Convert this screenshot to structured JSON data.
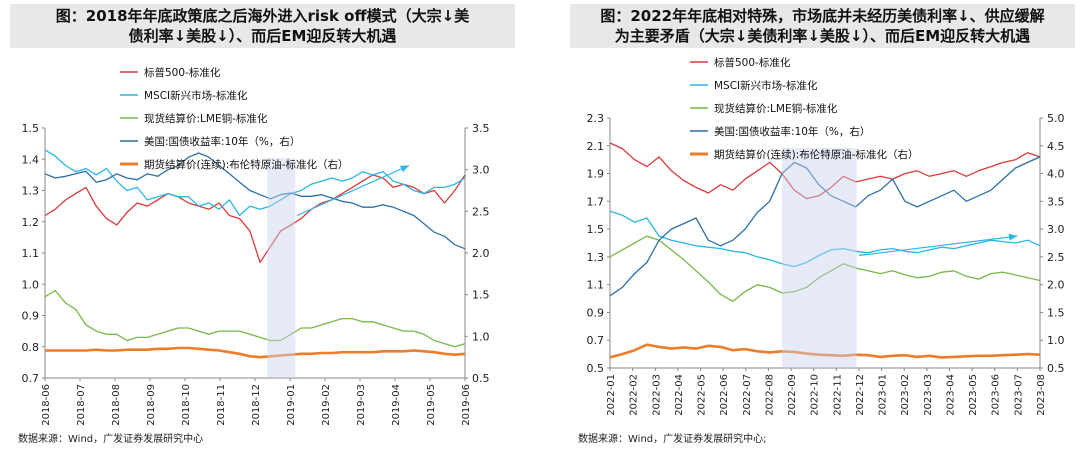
{
  "colors": {
    "sp500": "#d93a3a",
    "msci": "#29b6e8",
    "lme": "#7ab648",
    "ust10y": "#2c6fa8",
    "brent": "#ee7d2a",
    "highlight": "#c9d3ee",
    "arrow": "#29b6e8"
  },
  "chart_data": [
    {
      "type": "line",
      "title": "图：2018年年底政策底之后海外进入risk off模式（大宗↓美债利率↓美股↓）、而后EM迎反转大机遇",
      "title_lines": [
        "图：2018年年底政策底之后海外进入risk off模式（大宗↓美",
        "债利率↓美股↓）、而后EM迎反转大机遇"
      ],
      "x_labels": [
        "2018-06",
        "2018-07",
        "2018-08",
        "2018-09",
        "2018-10",
        "2018-11",
        "2018-12",
        "2019-01",
        "2019-02",
        "2019-03",
        "2019-04",
        "2019-05",
        "2019-06"
      ],
      "y_left": {
        "ylim": [
          0.7,
          1.5
        ],
        "ticks": [
          "0.7",
          "0.8",
          "0.9",
          "1.0",
          "1.1",
          "1.2",
          "1.3",
          "1.4",
          "1.5"
        ]
      },
      "y_right": {
        "ylim": [
          0.5,
          3.5
        ],
        "ticks": [
          "0.5",
          "1.0",
          "1.5",
          "2.0",
          "2.5",
          "3.0",
          "3.5"
        ]
      },
      "highlight": [
        6.35,
        7.15
      ],
      "arrow": {
        "from": [
          7.2,
          1.22
        ],
        "to": [
          10.4,
          1.38
        ]
      },
      "legend": [
        "标普500-标准化",
        "MSCI新兴市场-标准化",
        "现货结算价:LME铜-标准化",
        "美国:国债收益率:10年（%，右）",
        "期货结算价(连续):布伦特原油-标准化（右）"
      ],
      "series": [
        {
          "name": "标普500-标准化",
          "axis": "left",
          "color_key": "sp500",
          "values": [
            1.22,
            1.24,
            1.27,
            1.29,
            1.31,
            1.25,
            1.21,
            1.19,
            1.23,
            1.26,
            1.25,
            1.27,
            1.29,
            1.28,
            1.26,
            1.25,
            1.24,
            1.26,
            1.22,
            1.21,
            1.17,
            1.07,
            1.12,
            1.17,
            1.19,
            1.21,
            1.24,
            1.26,
            1.27,
            1.29,
            1.31,
            1.33,
            1.35,
            1.34,
            1.31,
            1.32,
            1.31,
            1.29,
            1.3,
            1.26,
            1.3,
            1.35
          ]
        },
        {
          "name": "MSCI新兴市场-标准化",
          "axis": "left",
          "color_key": "msci",
          "values": [
            1.43,
            1.41,
            1.38,
            1.36,
            1.37,
            1.35,
            1.37,
            1.33,
            1.3,
            1.31,
            1.27,
            1.28,
            1.29,
            1.28,
            1.28,
            1.25,
            1.26,
            1.24,
            1.27,
            1.22,
            1.25,
            1.24,
            1.25,
            1.27,
            1.29,
            1.3,
            1.32,
            1.33,
            1.34,
            1.33,
            1.34,
            1.36,
            1.35,
            1.36,
            1.33,
            1.32,
            1.3,
            1.29,
            1.31,
            1.31,
            1.32,
            1.34
          ]
        },
        {
          "name": "现货结算价:LME铜-标准化",
          "axis": "left",
          "color_key": "lme",
          "values": [
            0.96,
            0.98,
            0.94,
            0.92,
            0.87,
            0.85,
            0.84,
            0.84,
            0.82,
            0.83,
            0.83,
            0.84,
            0.85,
            0.86,
            0.86,
            0.85,
            0.84,
            0.85,
            0.85,
            0.85,
            0.84,
            0.83,
            0.82,
            0.82,
            0.84,
            0.86,
            0.86,
            0.87,
            0.88,
            0.89,
            0.89,
            0.88,
            0.88,
            0.87,
            0.86,
            0.85,
            0.85,
            0.84,
            0.82,
            0.81,
            0.8,
            0.81
          ]
        },
        {
          "name": "美国:国债收益率:10年（%，右）",
          "axis": "right",
          "color_key": "ust10y",
          "values": [
            2.95,
            2.9,
            2.92,
            2.95,
            2.98,
            2.85,
            2.88,
            2.95,
            2.9,
            2.88,
            2.95,
            2.92,
            3.0,
            3.05,
            3.15,
            3.2,
            3.15,
            3.05,
            2.95,
            2.85,
            2.75,
            2.7,
            2.65,
            2.7,
            2.72,
            2.68,
            2.68,
            2.7,
            2.66,
            2.62,
            2.6,
            2.55,
            2.55,
            2.58,
            2.55,
            2.5,
            2.45,
            2.35,
            2.25,
            2.2,
            2.1,
            2.05
          ]
        },
        {
          "name": "期货结算价(连续):布伦特原油-标准化（右）",
          "axis": "right",
          "color_key": "brent",
          "values": [
            0.83,
            0.83,
            0.83,
            0.83,
            0.83,
            0.84,
            0.83,
            0.83,
            0.84,
            0.84,
            0.84,
            0.85,
            0.85,
            0.86,
            0.86,
            0.85,
            0.84,
            0.83,
            0.81,
            0.79,
            0.76,
            0.75,
            0.76,
            0.77,
            0.78,
            0.79,
            0.79,
            0.8,
            0.8,
            0.81,
            0.81,
            0.81,
            0.81,
            0.82,
            0.82,
            0.82,
            0.83,
            0.82,
            0.81,
            0.79,
            0.78,
            0.79
          ]
        }
      ],
      "source": "数据来源：Wind，广发证券发展研究中心"
    },
    {
      "type": "line",
      "title": "图：2022年年底相对特殊，市场底并未经历美债利率↓、供应缓解为主要矛盾（大宗↓美债利率↓美股↓）、而后EM迎反转大机遇",
      "title_lines": [
        "图：2022年年底相对特殊，市场底并未经历美债利率↓、供应缓解",
        "为主要矛盾（大宗↓美债利率↓美股↓）、而后EM迎反转大机遇"
      ],
      "x_labels": [
        "2022-01",
        "2022-02",
        "2022-03",
        "2022-04",
        "2022-05",
        "2022-06",
        "2022-07",
        "2022-08",
        "2022-09",
        "2022-10",
        "2022-11",
        "2022-12",
        "2023-01",
        "2023-02",
        "2023-03",
        "2023-04",
        "2023-05",
        "2023-06",
        "2023-07",
        "2023-08"
      ],
      "y_left": {
        "ylim": [
          0.5,
          2.3
        ],
        "ticks": [
          "0.5",
          "0.7",
          "0.9",
          "1.1",
          "1.3",
          "1.5",
          "1.7",
          "1.9",
          "2.1",
          "2.3"
        ]
      },
      "y_right": {
        "ylim": [
          0.5,
          5.0
        ],
        "ticks": [
          "0.5",
          "1.0",
          "1.5",
          "2.0",
          "2.5",
          "3.0",
          "3.5",
          "4.0",
          "4.5",
          "5.0"
        ]
      },
      "highlight": [
        7.6,
        10.9
      ],
      "arrow": {
        "from": [
          11.0,
          1.31
        ],
        "to": [
          18.0,
          1.45
        ]
      },
      "legend": [
        "标普500-标准化",
        "MSCI新兴市场-标准化",
        "现货结算价:LME铜-标准化",
        "美国:国债收益率:10年（%，右）",
        "期货结算价(连续):布伦特原油-标准化（右）"
      ],
      "series": [
        {
          "name": "标普500-标准化",
          "axis": "left",
          "color_key": "sp500",
          "values": [
            2.12,
            2.08,
            2.0,
            1.95,
            2.02,
            1.92,
            1.85,
            1.8,
            1.76,
            1.82,
            1.78,
            1.86,
            1.92,
            1.98,
            1.9,
            1.78,
            1.72,
            1.74,
            1.8,
            1.88,
            1.84,
            1.86,
            1.88,
            1.86,
            1.9,
            1.92,
            1.88,
            1.9,
            1.92,
            1.88,
            1.92,
            1.95,
            1.98,
            2.0,
            2.05,
            2.02
          ]
        },
        {
          "name": "MSCI新兴市场-标准化",
          "axis": "left",
          "color_key": "msci",
          "values": [
            1.63,
            1.6,
            1.55,
            1.58,
            1.45,
            1.42,
            1.4,
            1.38,
            1.37,
            1.36,
            1.34,
            1.33,
            1.3,
            1.28,
            1.25,
            1.23,
            1.26,
            1.31,
            1.35,
            1.36,
            1.34,
            1.33,
            1.35,
            1.36,
            1.34,
            1.33,
            1.35,
            1.37,
            1.36,
            1.38,
            1.4,
            1.42,
            1.41,
            1.4,
            1.42,
            1.38
          ]
        },
        {
          "name": "现货结算价:LME铜-标准化",
          "axis": "left",
          "color_key": "lme",
          "values": [
            1.3,
            1.35,
            1.4,
            1.45,
            1.42,
            1.35,
            1.28,
            1.2,
            1.12,
            1.03,
            0.98,
            1.05,
            1.1,
            1.08,
            1.04,
            1.05,
            1.08,
            1.15,
            1.2,
            1.25,
            1.22,
            1.2,
            1.18,
            1.2,
            1.17,
            1.15,
            1.16,
            1.19,
            1.2,
            1.16,
            1.14,
            1.18,
            1.19,
            1.17,
            1.15,
            1.13
          ]
        },
        {
          "name": "美国:国债收益率:10年（%，右）",
          "axis": "right",
          "color_key": "ust10y",
          "values": [
            1.8,
            1.95,
            2.2,
            2.4,
            2.8,
            3.0,
            3.1,
            3.2,
            2.8,
            2.7,
            2.8,
            3.0,
            3.3,
            3.5,
            4.0,
            4.2,
            4.1,
            3.8,
            3.6,
            3.5,
            3.4,
            3.6,
            3.7,
            3.9,
            3.5,
            3.4,
            3.5,
            3.6,
            3.7,
            3.5,
            3.6,
            3.7,
            3.9,
            4.1,
            4.2,
            4.3
          ]
        },
        {
          "name": "期货结算价(连续):布伦特原油-标准化（右）",
          "axis": "right",
          "color_key": "brent",
          "values": [
            0.69,
            0.75,
            0.82,
            0.92,
            0.88,
            0.85,
            0.87,
            0.85,
            0.9,
            0.88,
            0.82,
            0.84,
            0.8,
            0.78,
            0.8,
            0.79,
            0.76,
            0.74,
            0.73,
            0.72,
            0.74,
            0.73,
            0.7,
            0.72,
            0.73,
            0.7,
            0.72,
            0.69,
            0.7,
            0.71,
            0.72,
            0.72,
            0.73,
            0.74,
            0.75,
            0.74
          ]
        }
      ],
      "source": "数据来源：Wind，广发证券发展研究中心;"
    }
  ]
}
